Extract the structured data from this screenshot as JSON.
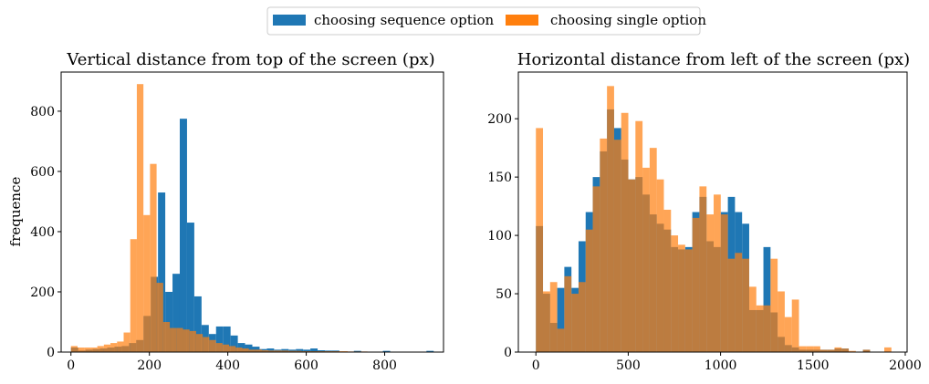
{
  "legend": {
    "placement": "top-center",
    "items": [
      {
        "label": "choosing sequence option",
        "color": "#1f77b4"
      },
      {
        "label": "choosing single option",
        "color": "#ff7f0e"
      }
    ]
  },
  "chart_data": [
    {
      "type": "histogram",
      "title": "Vertical distance from top of the screen (px)",
      "xlabel": "",
      "ylabel": "frequence",
      "xlim": [
        -25,
        950
      ],
      "ylim": [
        0,
        930
      ],
      "xticks": [
        0,
        200,
        400,
        600,
        800
      ],
      "yticks": [
        0,
        200,
        400,
        600,
        800
      ],
      "grid": false,
      "series": [
        {
          "name": "choosing sequence option",
          "color": "#1f77b4",
          "opacity": 1.0,
          "x0": 0,
          "bin_width": 18.5,
          "values": [
            15,
            5,
            8,
            10,
            12,
            15,
            18,
            20,
            30,
            40,
            120,
            250,
            530,
            200,
            260,
            775,
            430,
            185,
            90,
            60,
            85,
            85,
            55,
            30,
            25,
            18,
            10,
            12,
            8,
            10,
            8,
            10,
            8,
            12,
            6,
            5,
            5,
            0,
            0,
            4,
            0,
            0,
            0,
            4,
            0,
            0,
            0,
            0,
            0,
            4
          ]
        },
        {
          "name": "choosing single option",
          "color": "#ff7f0e",
          "opacity": 0.7,
          "x0": 0,
          "bin_width": 16.8,
          "values": [
            20,
            15,
            15,
            15,
            20,
            25,
            30,
            35,
            65,
            375,
            890,
            455,
            625,
            230,
            100,
            80,
            80,
            75,
            70,
            60,
            50,
            40,
            30,
            25,
            20,
            15,
            12,
            8,
            8,
            6,
            5,
            5,
            5,
            4,
            4,
            3,
            3,
            3,
            3,
            3,
            3,
            3,
            2,
            2,
            2,
            0,
            0,
            0,
            0,
            0
          ]
        }
      ]
    },
    {
      "type": "histogram",
      "title": "Horizontal distance from left of the screen (px)",
      "xlabel": "",
      "ylabel": "",
      "xlim": [
        -95,
        2010
      ],
      "ylim": [
        0,
        240
      ],
      "xticks": [
        0,
        500,
        1000,
        1500,
        2000
      ],
      "yticks": [
        0,
        50,
        100,
        150,
        200
      ],
      "grid": false,
      "series": [
        {
          "name": "choosing sequence option",
          "color": "#1f77b4",
          "opacity": 1.0,
          "x0": 0,
          "bin_width": 38.5,
          "values": [
            108,
            50,
            25,
            55,
            73,
            55,
            95,
            120,
            150,
            172,
            208,
            192,
            165,
            148,
            150,
            135,
            118,
            110,
            105,
            90,
            88,
            90,
            120,
            133,
            95,
            90,
            120,
            133,
            120,
            110,
            36,
            36,
            90,
            34,
            13,
            6,
            4,
            2,
            2,
            2,
            2,
            2,
            3,
            3,
            0,
            0,
            2,
            0,
            0,
            0
          ]
        },
        {
          "name": "choosing single option",
          "color": "#ff7f0e",
          "opacity": 0.7,
          "x0": 0,
          "bin_width": 38.5,
          "values": [
            192,
            52,
            60,
            20,
            65,
            50,
            60,
            105,
            142,
            183,
            228,
            182,
            205,
            148,
            198,
            158,
            175,
            148,
            122,
            100,
            92,
            88,
            115,
            142,
            118,
            135,
            118,
            80,
            85,
            80,
            56,
            40,
            40,
            80,
            52,
            30,
            45,
            5,
            5,
            5,
            2,
            2,
            4,
            3,
            1,
            0,
            2,
            0,
            0,
            4
          ]
        }
      ]
    }
  ]
}
